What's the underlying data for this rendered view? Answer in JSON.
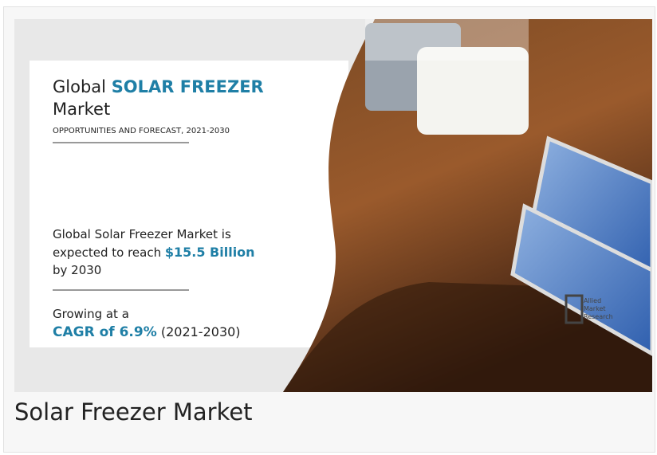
{
  "image": {
    "headline": {
      "prefix": "Global",
      "highlight": "SOLAR FREEZER",
      "suffix": "Market"
    },
    "subtitle": "OPPORTUNITIES AND FORECAST, 2021-2030",
    "statement": {
      "line1": "Global Solar Freezer Market is",
      "line2": "expected to reach",
      "highlight": "$15.5 Billion",
      "line3": "by 2030"
    },
    "growth": {
      "line1": "Growing at a",
      "highlight": "CAGR of 6.9%",
      "period": "(2021-2030)"
    },
    "logo": [
      "Allied",
      "Market",
      "Research"
    ]
  },
  "caption": "Solar Freezer Market"
}
